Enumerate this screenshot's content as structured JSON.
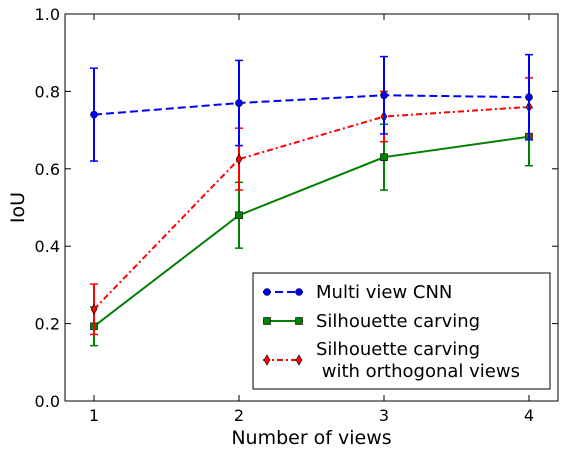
{
  "chart_data": {
    "type": "line",
    "xlabel": "Number of views",
    "ylabel": "IoU",
    "xlim": [
      0.8,
      4.2
    ],
    "ylim": [
      0.0,
      1.0
    ],
    "x_ticks": [
      1,
      2,
      3,
      4
    ],
    "y_ticks": [
      0.0,
      0.2,
      0.4,
      0.6,
      0.8,
      1.0
    ],
    "x_tick_labels": [
      "1",
      "2",
      "3",
      "4"
    ],
    "y_tick_labels": [
      "0.0",
      "0.2",
      "0.4",
      "0.6",
      "0.8",
      "1.0"
    ],
    "grid": false,
    "legend_position": "lower-right",
    "x": [
      1,
      2,
      3,
      4
    ],
    "series": [
      {
        "name": "Multi view CNN",
        "color": "#0000ff",
        "line_style": "dashed",
        "marker": "circle",
        "values": [
          0.74,
          0.77,
          0.79,
          0.785
        ],
        "error": [
          0.12,
          0.11,
          0.1,
          0.11
        ]
      },
      {
        "name": "Silhouette carving",
        "color": "#008000",
        "line_style": "solid",
        "marker": "square",
        "values": [
          0.193,
          0.48,
          0.63,
          0.683
        ],
        "error": [
          0.05,
          0.085,
          0.085,
          0.075
        ]
      },
      {
        "name": "Silhouette carving\n with orthogonal views",
        "color": "#ff0000",
        "line_style": "dashdot",
        "marker": "diamond",
        "values": [
          0.237,
          0.625,
          0.735,
          0.76
        ],
        "error": [
          0.065,
          0.08,
          0.065,
          0.075
        ]
      }
    ]
  }
}
